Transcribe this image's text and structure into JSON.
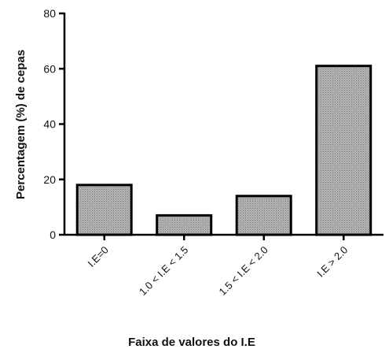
{
  "chart_data": {
    "type": "bar",
    "categories": [
      "I.E=0",
      "1.0 < I.E < 1.5",
      "1.5 < I.E < 2.0",
      "I.E > 2.0"
    ],
    "values": [
      18,
      7,
      14,
      61
    ],
    "xlabel": "Faixa de valores do I.E",
    "ylabel": "Percentagem (%) de cepas",
    "ylim": [
      0,
      80
    ],
    "yticks": [
      0,
      20,
      40,
      60,
      80
    ],
    "grid": false,
    "bar_fill": "#a8a8a8",
    "bar_stroke": "#000000"
  }
}
